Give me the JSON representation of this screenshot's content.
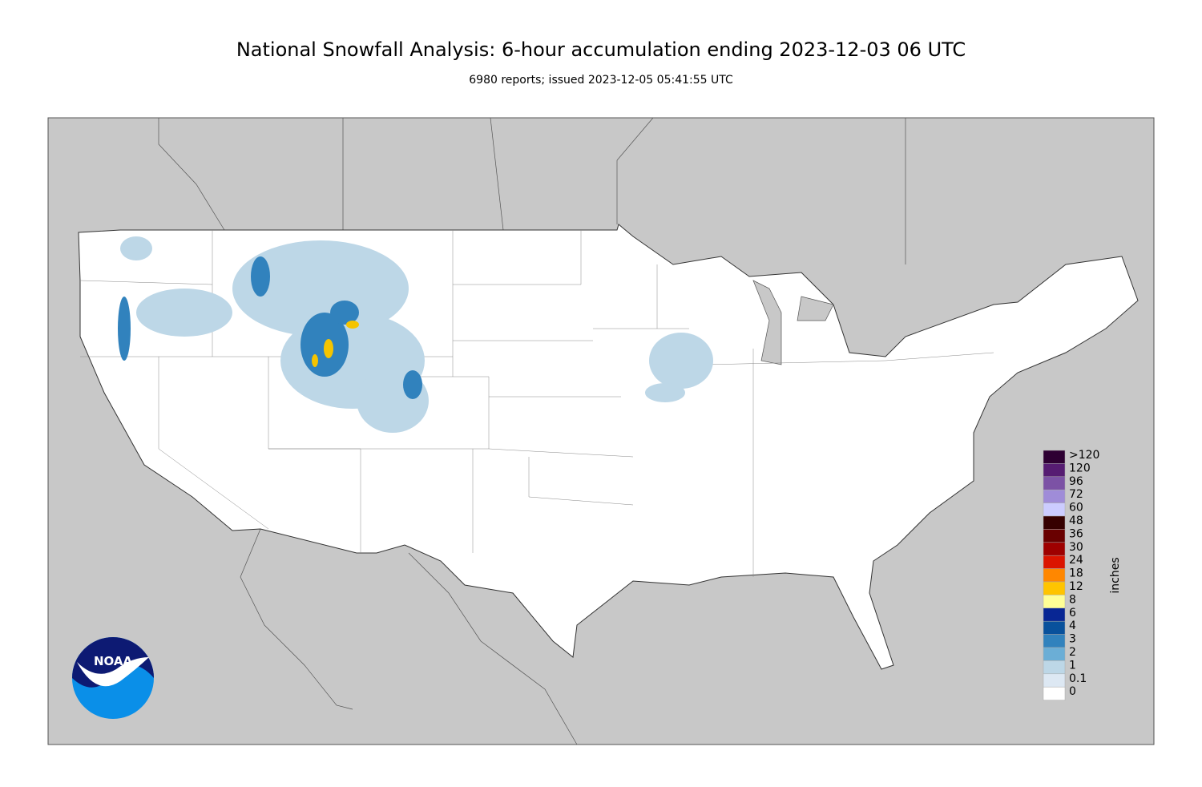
{
  "header": {
    "title": "National Snowfall Analysis: 6-hour accumulation ending 2023-12-03 06 UTC",
    "subtitle": "6980 reports; issued 2023-12-05 05:41:55 UTC"
  },
  "legend": {
    "unit": "inches",
    "items": [
      {
        "label": ">120",
        "color": "#2e0033"
      },
      {
        "label": "120",
        "color": "#561c72"
      },
      {
        "label": "96",
        "color": "#7c52a5"
      },
      {
        "label": "72",
        "color": "#9f8cd8"
      },
      {
        "label": "60",
        "color": "#ccccff"
      },
      {
        "label": "48",
        "color": "#360000"
      },
      {
        "label": "36",
        "color": "#690000"
      },
      {
        "label": "30",
        "color": "#9e0000"
      },
      {
        "label": "24",
        "color": "#db1400"
      },
      {
        "label": "18",
        "color": "#ff8700"
      },
      {
        "label": "12",
        "color": "#ffc400"
      },
      {
        "label": "8",
        "color": "#ffff96"
      },
      {
        "label": "6",
        "color": "#082694"
      },
      {
        "label": "4",
        "color": "#08519c"
      },
      {
        "label": "3",
        "color": "#3182bd"
      },
      {
        "label": "2",
        "color": "#6baed6"
      },
      {
        "label": "1",
        "color": "#bdd7e7"
      },
      {
        "label": "0.1",
        "color": "#dde8f3"
      },
      {
        "label": "0",
        "color": "#ffffff"
      }
    ]
  },
  "logo": {
    "text": "NOAA"
  }
}
